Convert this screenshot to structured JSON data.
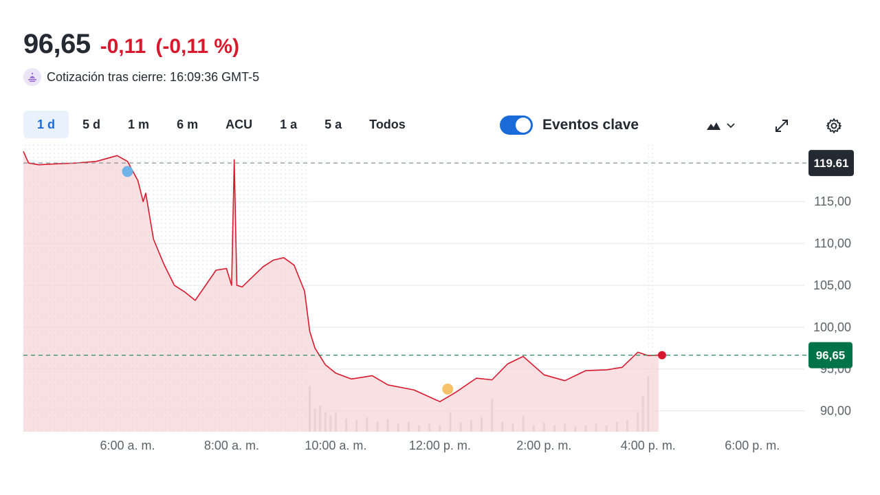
{
  "quote": {
    "price": "96,65",
    "change": "-0,11",
    "change_pct": "(-0,11 %)",
    "after_hours_text": "Cotización tras cierre: 16:09:36 GMT-5"
  },
  "range_tabs": [
    {
      "label": "1 d",
      "active": true
    },
    {
      "label": "5 d",
      "active": false
    },
    {
      "label": "1 m",
      "active": false
    },
    {
      "label": "6 m",
      "active": false
    },
    {
      "label": "ACU",
      "active": false
    },
    {
      "label": "1 a",
      "active": false
    },
    {
      "label": "5 a",
      "active": false
    },
    {
      "label": "Todos",
      "active": false
    }
  ],
  "events_toggle": {
    "label": "Eventos clave",
    "on": true
  },
  "toolbar": {
    "chart_type_icon": "mountain-icon",
    "expand_icon": "expand-icon",
    "settings_icon": "gear-icon"
  },
  "colors": {
    "line": "#d8182c",
    "fill": "#f7d3d6",
    "up": "#00734a",
    "badge_prev": "#232a31",
    "event_blue": "#6fb4e6",
    "event_orange": "#f5c26b",
    "volume": "#c9cdd1",
    "accent": "#1a6bd9"
  },
  "chart_data": {
    "type": "area",
    "title": "",
    "xlabel": "",
    "ylabel": "",
    "x_ticks": [
      "6:00 a. m.",
      "8:00 a. m.",
      "10:00 a. m.",
      "12:00 p. m.",
      "2:00 p. m.",
      "4:00 p. m.",
      "6:00 p. m."
    ],
    "x_range_hours": [
      4,
      19
    ],
    "ylim": [
      87.5,
      122
    ],
    "y_ticks": [
      "90,00",
      "95,00",
      "100,00",
      "105,00",
      "110,00",
      "115,00"
    ],
    "y_tick_values": [
      90,
      95,
      100,
      105,
      110,
      115
    ],
    "prev_close": {
      "value": 119.61,
      "label": "119.61"
    },
    "current": {
      "value": 96.65,
      "label": "96,65"
    },
    "premarket_end_hour": 9.5,
    "afterhours_start_hour": 16,
    "grid": true,
    "legend": "none",
    "series": [
      {
        "x": [
          4.0,
          4.1,
          4.3,
          4.6,
          5.0,
          5.4,
          5.8,
          6.0,
          6.2,
          6.3,
          6.35,
          6.5,
          6.7,
          6.9,
          7.1,
          7.3,
          7.5,
          7.7,
          7.9,
          8.0,
          8.05,
          8.1,
          8.2,
          8.4,
          8.6,
          8.8,
          9.0,
          9.2,
          9.4,
          9.5,
          9.6,
          9.8,
          10.0,
          10.3,
          10.7,
          11.0,
          11.5,
          12.0,
          12.3,
          12.7,
          13.0,
          13.3,
          13.6,
          14.0,
          14.4,
          14.8,
          15.2,
          15.5,
          15.8,
          16.0,
          16.2
        ],
        "y": [
          121,
          119.6,
          119.4,
          119.5,
          119.6,
          119.8,
          120.5,
          119.8,
          117.5,
          115,
          116,
          110.5,
          107.5,
          105,
          104.2,
          103.2,
          105,
          106.8,
          107,
          105,
          120,
          105,
          104.8,
          106,
          107.2,
          108,
          108.3,
          107.4,
          104.3,
          99.5,
          97.5,
          95.5,
          94.5,
          93.8,
          94.2,
          93.1,
          92.5,
          91.1,
          92.2,
          93.9,
          93.7,
          95.6,
          96.5,
          94.3,
          93.6,
          94.8,
          94.9,
          95.2,
          97.0,
          96.6,
          96.65
        ]
      }
    ],
    "volume": {
      "x": [
        9.5,
        9.6,
        9.7,
        9.8,
        9.9,
        10.0,
        10.2,
        10.4,
        10.6,
        10.8,
        11.0,
        11.2,
        11.4,
        11.6,
        11.8,
        12.0,
        12.2,
        12.4,
        12.6,
        12.8,
        13.0,
        13.2,
        13.4,
        13.6,
        13.8,
        14.0,
        14.2,
        14.4,
        14.6,
        14.8,
        15.0,
        15.2,
        15.4,
        15.6,
        15.8,
        15.9,
        16.0
      ],
      "y": [
        0.7,
        0.35,
        0.4,
        0.3,
        0.25,
        0.3,
        0.2,
        0.18,
        0.22,
        0.15,
        0.2,
        0.12,
        0.15,
        0.1,
        0.12,
        0.1,
        0.3,
        0.14,
        0.18,
        0.22,
        0.5,
        0.15,
        0.12,
        0.25,
        0.1,
        0.14,
        0.1,
        0.12,
        0.08,
        0.1,
        0.12,
        0.1,
        0.15,
        0.18,
        0.3,
        0.55,
        0.85
      ]
    },
    "events": [
      {
        "x": 6.0,
        "y": 118.6,
        "color": "#6fb4e6"
      },
      {
        "x": 12.15,
        "y": 92.6,
        "color": "#f5c26b"
      }
    ]
  }
}
